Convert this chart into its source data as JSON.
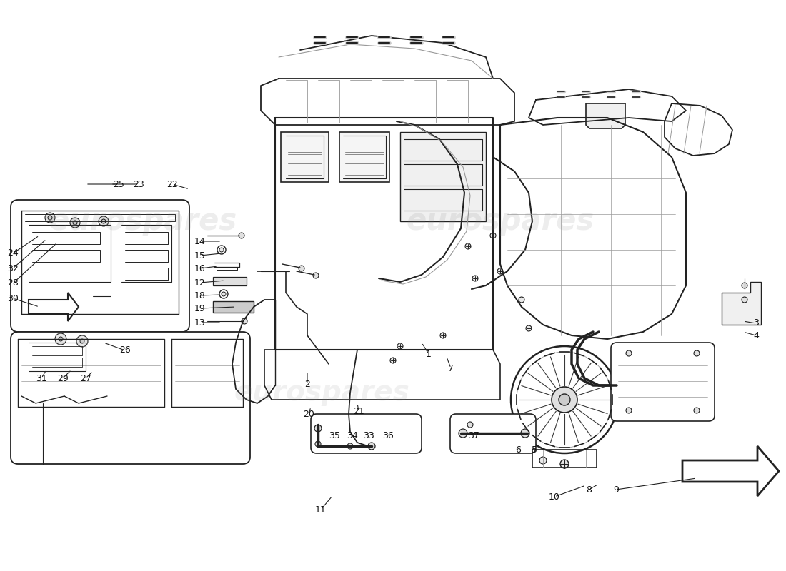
{
  "bg": "#ffffff",
  "lc": "#222222",
  "llc": "#999999",
  "wm_color": "#aaaaaa",
  "wm_alpha": 0.18,
  "figsize": [
    11.0,
    8.0
  ],
  "dpi": 100,
  "part_labels": [
    [
      449,
      714,
      "11"
    ],
    [
      776,
      696,
      "10"
    ],
    [
      824,
      686,
      "8"
    ],
    [
      862,
      686,
      "9"
    ],
    [
      1058,
      453,
      "3"
    ],
    [
      1058,
      470,
      "4"
    ],
    [
      600,
      496,
      "1"
    ],
    [
      430,
      538,
      "2"
    ],
    [
      631,
      516,
      "7"
    ],
    [
      432,
      580,
      "20"
    ],
    [
      502,
      576,
      "21"
    ],
    [
      18,
      355,
      "24"
    ],
    [
      18,
      376,
      "32"
    ],
    [
      18,
      397,
      "28"
    ],
    [
      18,
      418,
      "30"
    ],
    [
      175,
      491,
      "26"
    ],
    [
      280,
      338,
      "14"
    ],
    [
      280,
      358,
      "15"
    ],
    [
      280,
      376,
      "16"
    ],
    [
      280,
      396,
      "12"
    ],
    [
      280,
      414,
      "18"
    ],
    [
      280,
      432,
      "19"
    ],
    [
      280,
      452,
      "13"
    ],
    [
      166,
      258,
      "25"
    ],
    [
      194,
      258,
      "23"
    ],
    [
      241,
      258,
      "22"
    ],
    [
      58,
      530,
      "31"
    ],
    [
      88,
      530,
      "29"
    ],
    [
      120,
      530,
      "27"
    ],
    [
      468,
      610,
      "35"
    ],
    [
      493,
      610,
      "34"
    ],
    [
      516,
      610,
      "33"
    ],
    [
      543,
      610,
      "36"
    ],
    [
      663,
      610,
      "37"
    ],
    [
      725,
      630,
      "6"
    ],
    [
      748,
      630,
      "5"
    ]
  ]
}
